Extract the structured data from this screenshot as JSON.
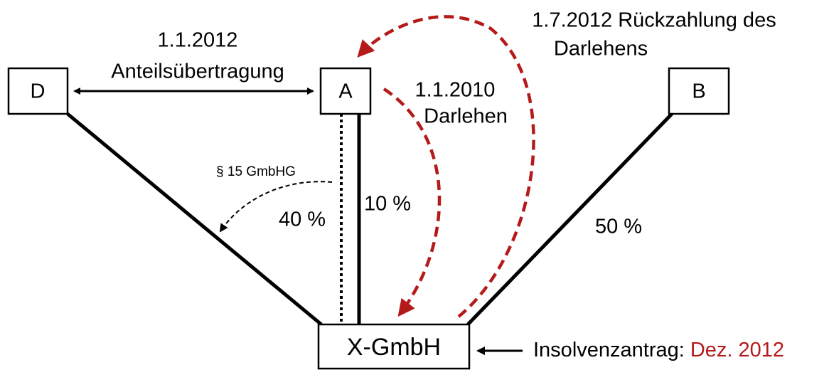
{
  "nodes": [
    {
      "label": "D"
    },
    {
      "label": "A"
    },
    {
      "label": "B"
    },
    {
      "label": "X-GmbH"
    }
  ],
  "transfer": {
    "date": "1.1.2012",
    "label": "Anteilsübertragung"
  },
  "loan": {
    "date": "1.1.2010",
    "label": "Darlehen"
  },
  "repayment": {
    "line1": "1.7.2012 Rückzahlung des",
    "line2": "Darlehens"
  },
  "rule": "§ 15 GmbHG",
  "shares": {
    "D": "40 %",
    "A": "10 %",
    "B": "50 %"
  },
  "insolvency": {
    "label": "Insolvenzantrag:",
    "date": "Dez. 2012"
  }
}
